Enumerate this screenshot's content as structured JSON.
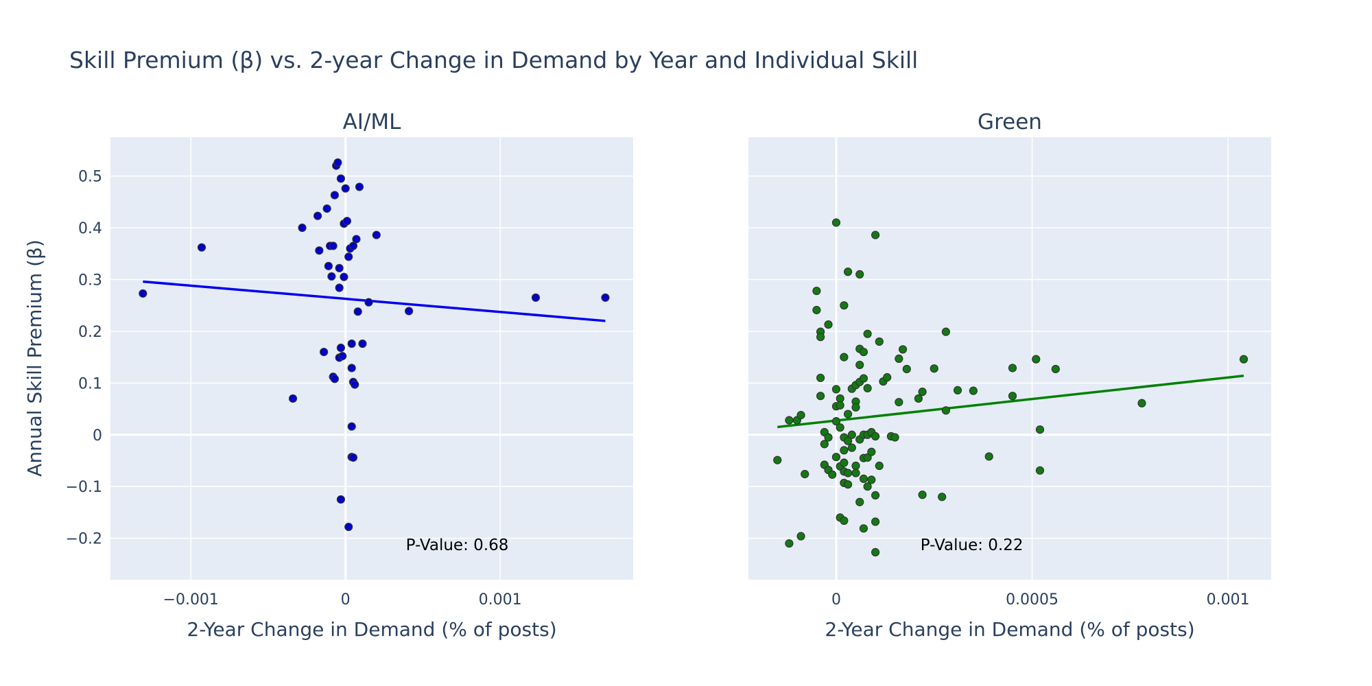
{
  "title": "Skill Premium (β) vs. 2-year Change in Demand by Year and Individual Skill",
  "chart_data": [
    {
      "type": "scatter",
      "title": "AI/ML",
      "xlabel": "2-Year Change in Demand (% of posts)",
      "ylabel": "Annual Skill Premium (β)",
      "xlim": [
        -0.00152,
        0.00186
      ],
      "ylim": [
        -0.28,
        0.575
      ],
      "xticks": [
        -0.001,
        0,
        0.001
      ],
      "xtick_labels": [
        "−0.001",
        "0",
        "0.001"
      ],
      "yticks": [
        -0.2,
        -0.1,
        0,
        0.1,
        0.2,
        0.3,
        0.4,
        0.5
      ],
      "ytick_labels": [
        "−0.2",
        "−0.1",
        "0",
        "0.1",
        "0.2",
        "0.3",
        "0.4",
        "0.5"
      ],
      "marker_color": "#0000cc",
      "line_color": "#0000ee",
      "annotation": "P-Value: 0.68",
      "annotation_pos": [
        0.00039,
        -0.2122
      ],
      "trendline": {
        "x": [
          -0.00131,
          0.00168
        ],
        "y": [
          0.296,
          0.22
        ]
      },
      "points": [
        {
          "x": -0.00131,
          "y": 0.273
        },
        {
          "x": -0.00093,
          "y": 0.362
        },
        {
          "x": -0.00028,
          "y": 0.4
        },
        {
          "x": -0.00034,
          "y": 0.07
        },
        {
          "x": -0.00018,
          "y": 0.423
        },
        {
          "x": -0.00017,
          "y": 0.356
        },
        {
          "x": -0.00014,
          "y": 0.16
        },
        {
          "x": -0.00012,
          "y": 0.437
        },
        {
          "x": -0.00011,
          "y": 0.326
        },
        {
          "x": -0.0001,
          "y": 0.365
        },
        {
          "x": -9e-05,
          "y": 0.306
        },
        {
          "x": -8e-05,
          "y": 0.365
        },
        {
          "x": -8e-05,
          "y": 0.112
        },
        {
          "x": -7e-05,
          "y": 0.463
        },
        {
          "x": -7e-05,
          "y": 0.108
        },
        {
          "x": -6e-05,
          "y": 0.52
        },
        {
          "x": -5e-05,
          "y": 0.526
        },
        {
          "x": -4e-05,
          "y": 0.322
        },
        {
          "x": -4e-05,
          "y": 0.284
        },
        {
          "x": -4e-05,
          "y": 0.149
        },
        {
          "x": -3e-05,
          "y": 0.168
        },
        {
          "x": -3e-05,
          "y": 0.495
        },
        {
          "x": -3e-05,
          "y": -0.125
        },
        {
          "x": -2e-05,
          "y": 0.152
        },
        {
          "x": -1e-05,
          "y": 0.408
        },
        {
          "x": -1e-05,
          "y": 0.305
        },
        {
          "x": 0.0,
          "y": 0.476
        },
        {
          "x": 1e-05,
          "y": 0.413
        },
        {
          "x": 2e-05,
          "y": 0.344
        },
        {
          "x": 2e-05,
          "y": -0.178
        },
        {
          "x": 3e-05,
          "y": 0.36
        },
        {
          "x": 4e-05,
          "y": 0.176
        },
        {
          "x": 4e-05,
          "y": 0.129
        },
        {
          "x": 4e-05,
          "y": 0.016
        },
        {
          "x": 4e-05,
          "y": -0.043
        },
        {
          "x": 5e-05,
          "y": 0.365
        },
        {
          "x": 5e-05,
          "y": 0.102
        },
        {
          "x": 5e-05,
          "y": -0.044
        },
        {
          "x": 6e-05,
          "y": 0.097
        },
        {
          "x": 7e-05,
          "y": 0.378
        },
        {
          "x": 8e-05,
          "y": 0.238
        },
        {
          "x": 9e-05,
          "y": 0.479
        },
        {
          "x": 0.00011,
          "y": 0.176
        },
        {
          "x": 0.00015,
          "y": 0.256
        },
        {
          "x": 0.0002,
          "y": 0.386
        },
        {
          "x": 0.00041,
          "y": 0.239
        },
        {
          "x": 0.00123,
          "y": 0.265
        },
        {
          "x": 0.00168,
          "y": 0.265
        }
      ]
    },
    {
      "type": "scatter",
      "title": "Green",
      "xlabel": "2-Year Change in Demand (% of posts)",
      "ylabel": "",
      "xlim": [
        -0.000224,
        0.00111
      ],
      "ylim": [
        -0.28,
        0.575
      ],
      "xticks": [
        0,
        0.0005,
        0.001
      ],
      "xtick_labels": [
        "0",
        "0.0005",
        "0.001"
      ],
      "yticks": [
        -0.2,
        -0.1,
        0,
        0.1,
        0.2,
        0.3,
        0.4,
        0.5
      ],
      "marker_color": "#137a13",
      "line_color": "#008000",
      "annotation": "P-Value: 0.22",
      "annotation_pos": [
        0.000215,
        -0.2122
      ],
      "trendline": {
        "x": [
          -0.00015,
          0.00104
        ],
        "y": [
          0.015,
          0.114
        ]
      },
      "points": [
        {
          "x": -0.00015,
          "y": -0.049
        },
        {
          "x": -0.00012,
          "y": 0.028
        },
        {
          "x": -0.00012,
          "y": -0.21
        },
        {
          "x": -0.0001,
          "y": 0.028
        },
        {
          "x": -9e-05,
          "y": 0.038
        },
        {
          "x": -9e-05,
          "y": -0.196
        },
        {
          "x": -8e-05,
          "y": -0.076
        },
        {
          "x": -5e-05,
          "y": 0.278
        },
        {
          "x": -5e-05,
          "y": 0.241
        },
        {
          "x": -4e-05,
          "y": 0.199
        },
        {
          "x": -4e-05,
          "y": 0.189
        },
        {
          "x": -4e-05,
          "y": 0.11
        },
        {
          "x": -4e-05,
          "y": 0.075
        },
        {
          "x": -3e-05,
          "y": 0.005
        },
        {
          "x": -3e-05,
          "y": -0.018
        },
        {
          "x": -3e-05,
          "y": -0.058
        },
        {
          "x": -2e-05,
          "y": 0.213
        },
        {
          "x": -2e-05,
          "y": -0.005
        },
        {
          "x": -2e-05,
          "y": -0.068
        },
        {
          "x": -1e-05,
          "y": -0.077
        },
        {
          "x": 0.0,
          "y": 0.41
        },
        {
          "x": 0.0,
          "y": 0.088
        },
        {
          "x": 0.0,
          "y": 0.055
        },
        {
          "x": 0.0,
          "y": 0.026
        },
        {
          "x": 0.0,
          "y": -0.043
        },
        {
          "x": 1e-05,
          "y": 0.07
        },
        {
          "x": 1e-05,
          "y": 0.057
        },
        {
          "x": 1e-05,
          "y": 0.014
        },
        {
          "x": 1e-05,
          "y": -0.061
        },
        {
          "x": 1e-05,
          "y": -0.16
        },
        {
          "x": 2e-05,
          "y": 0.25
        },
        {
          "x": 2e-05,
          "y": 0.15
        },
        {
          "x": 2e-05,
          "y": -0.005
        },
        {
          "x": 2e-05,
          "y": -0.03
        },
        {
          "x": 2e-05,
          "y": -0.054
        },
        {
          "x": 2e-05,
          "y": -0.071
        },
        {
          "x": 2e-05,
          "y": -0.093
        },
        {
          "x": 2e-05,
          "y": -0.166
        },
        {
          "x": 3e-05,
          "y": 0.315
        },
        {
          "x": 3e-05,
          "y": 0.04
        },
        {
          "x": 3e-05,
          "y": -0.012
        },
        {
          "x": 3e-05,
          "y": -0.074
        },
        {
          "x": 3e-05,
          "y": -0.096
        },
        {
          "x": 4e-05,
          "y": 0.089
        },
        {
          "x": 4e-05,
          "y": 0.0
        },
        {
          "x": 4e-05,
          "y": -0.025
        },
        {
          "x": 5e-05,
          "y": 0.096
        },
        {
          "x": 5e-05,
          "y": 0.064
        },
        {
          "x": 5e-05,
          "y": 0.053
        },
        {
          "x": 5e-05,
          "y": -0.06
        },
        {
          "x": 5e-05,
          "y": -0.074
        },
        {
          "x": 6e-05,
          "y": 0.31
        },
        {
          "x": 6e-05,
          "y": 0.166
        },
        {
          "x": 6e-05,
          "y": 0.135
        },
        {
          "x": 6e-05,
          "y": 0.102
        },
        {
          "x": 6e-05,
          "y": -0.009
        },
        {
          "x": 6e-05,
          "y": -0.13
        },
        {
          "x": 7e-05,
          "y": 0.16
        },
        {
          "x": 7e-05,
          "y": 0.109
        },
        {
          "x": 7e-05,
          "y": 0.0
        },
        {
          "x": 7e-05,
          "y": -0.045
        },
        {
          "x": 7e-05,
          "y": -0.085
        },
        {
          "x": 7e-05,
          "y": -0.181
        },
        {
          "x": 8e-05,
          "y": 0.195
        },
        {
          "x": 8e-05,
          "y": 0.09
        },
        {
          "x": 8e-05,
          "y": 0.0
        },
        {
          "x": 8e-05,
          "y": -0.044
        },
        {
          "x": 8e-05,
          "y": -0.1
        },
        {
          "x": 9e-05,
          "y": 0.005
        },
        {
          "x": 9e-05,
          "y": -0.033
        },
        {
          "x": 9e-05,
          "y": -0.087
        },
        {
          "x": 0.0001,
          "y": 0.386
        },
        {
          "x": 0.0001,
          "y": -0.003
        },
        {
          "x": 0.0001,
          "y": -0.117
        },
        {
          "x": 0.0001,
          "y": -0.168
        },
        {
          "x": 0.0001,
          "y": -0.227
        },
        {
          "x": 0.00011,
          "y": 0.18
        },
        {
          "x": 0.00011,
          "y": -0.06
        },
        {
          "x": 0.00012,
          "y": 0.103
        },
        {
          "x": 0.00013,
          "y": 0.111
        },
        {
          "x": 0.00014,
          "y": -0.003
        },
        {
          "x": 0.00015,
          "y": -0.005
        },
        {
          "x": 0.00016,
          "y": 0.147
        },
        {
          "x": 0.00016,
          "y": 0.063
        },
        {
          "x": 0.00017,
          "y": 0.165
        },
        {
          "x": 0.00018,
          "y": 0.127
        },
        {
          "x": 0.00021,
          "y": 0.07
        },
        {
          "x": 0.00022,
          "y": 0.083
        },
        {
          "x": 0.00022,
          "y": -0.116
        },
        {
          "x": 0.00025,
          "y": 0.128
        },
        {
          "x": 0.00027,
          "y": -0.12
        },
        {
          "x": 0.00028,
          "y": 0.199
        },
        {
          "x": 0.00028,
          "y": 0.047
        },
        {
          "x": 0.00031,
          "y": 0.086
        },
        {
          "x": 0.00035,
          "y": 0.085
        },
        {
          "x": 0.00039,
          "y": -0.042
        },
        {
          "x": 0.00045,
          "y": 0.129
        },
        {
          "x": 0.00045,
          "y": 0.075
        },
        {
          "x": 0.00051,
          "y": 0.146
        },
        {
          "x": 0.00052,
          "y": 0.01
        },
        {
          "x": 0.00052,
          "y": -0.069
        },
        {
          "x": 0.00056,
          "y": 0.127
        },
        {
          "x": 0.00078,
          "y": 0.061
        },
        {
          "x": 0.00104,
          "y": 0.146
        }
      ]
    }
  ]
}
